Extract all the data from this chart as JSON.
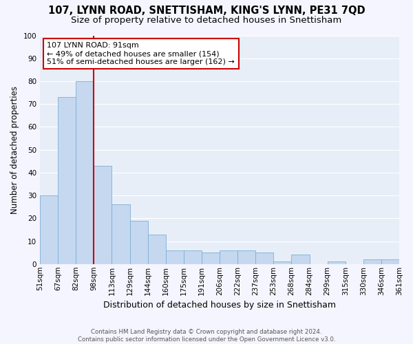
{
  "title1": "107, LYNN ROAD, SNETTISHAM, KING'S LYNN, PE31 7QD",
  "title2": "Size of property relative to detached houses in Snettisham",
  "xlabel": "Distribution of detached houses by size in Snettisham",
  "ylabel": "Number of detached properties",
  "bar_values": [
    30,
    73,
    80,
    43,
    26,
    19,
    13,
    6,
    6,
    5,
    6,
    6,
    5,
    1,
    4,
    0,
    1,
    0,
    2,
    2
  ],
  "x_labels": [
    "51sqm",
    "67sqm",
    "82sqm",
    "98sqm",
    "113sqm",
    "129sqm",
    "144sqm",
    "160sqm",
    "175sqm",
    "191sqm",
    "206sqm",
    "222sqm",
    "237sqm",
    "253sqm",
    "268sqm",
    "284sqm",
    "299sqm",
    "315sqm",
    "330sqm",
    "346sqm",
    "361sqm"
  ],
  "bar_color": "#c5d8f0",
  "bar_edge_color": "#7bafd4",
  "background_color": "#e8eef8",
  "grid_color": "#ffffff",
  "vline_x_index": 3,
  "vline_color": "#cc0000",
  "annotation_text": "107 LYNN ROAD: 91sqm\n← 49% of detached houses are smaller (154)\n51% of semi-detached houses are larger (162) →",
  "annotation_box_color": "#cc0000",
  "ylim": [
    0,
    100
  ],
  "yticks": [
    0,
    10,
    20,
    30,
    40,
    50,
    60,
    70,
    80,
    90,
    100
  ],
  "footnote": "Contains HM Land Registry data © Crown copyright and database right 2024.\nContains public sector information licensed under the Open Government Licence v3.0.",
  "title1_fontsize": 10.5,
  "title2_fontsize": 9.5,
  "xlabel_fontsize": 9,
  "ylabel_fontsize": 8.5,
  "tick_fontsize": 7.5,
  "annotation_fontsize": 8
}
